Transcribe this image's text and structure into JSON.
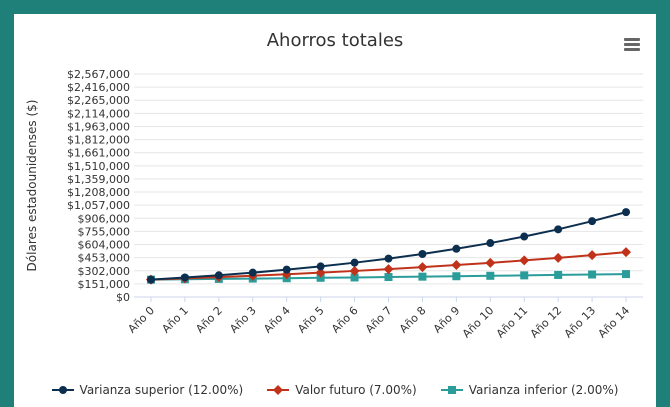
{
  "chart_data": {
    "type": "line",
    "title": "Ahorros totales",
    "ylabel": "Dólares estadounidenses ($)",
    "xlabel": "",
    "categories": [
      "Año 0",
      "Año 1",
      "Año 2",
      "Año 3",
      "Año 4",
      "Año 5",
      "Año 6",
      "Año 7",
      "Año 8",
      "Año 9",
      "Año 10",
      "Año 11",
      "Año 12",
      "Año 13",
      "Año 14"
    ],
    "yticks": [
      0,
      151000,
      302000,
      453000,
      604000,
      755000,
      906000,
      1057000,
      1208000,
      1359000,
      1510000,
      1661000,
      1812000,
      1963000,
      2114000,
      2265000,
      2416000,
      2567000
    ],
    "ytick_labels": [
      "$0",
      "$151,000",
      "$302,000",
      "$453,000",
      "$604,000",
      "$755,000",
      "$906,000",
      "$1,057,000",
      "$1,208,000",
      "$1,359,000",
      "$1,510,000",
      "$1,661,000",
      "$1,812,000",
      "$1,963,000",
      "$2,114,000",
      "$2,265,000",
      "$2,416,000",
      "$2,567,000"
    ],
    "ylim": [
      0,
      2567000
    ],
    "grid": true,
    "legend_position": "bottom",
    "series": [
      {
        "name": "Varianza superior (12.00%)",
        "color": "#0d2f4f",
        "marker": "circle",
        "values": [
          200000,
          225000,
          250000,
          280000,
          315000,
          352000,
          395000,
          442000,
          495000,
          555000,
          621000,
          696000,
          779000,
          873000,
          977000
        ]
      },
      {
        "name": "Valor futuro (7.00%)",
        "color": "#c0321a",
        "marker": "diamond",
        "values": [
          200000,
          214000,
          229000,
          245000,
          262000,
          281000,
          300000,
          321000,
          344000,
          368000,
          393000,
          421000,
          450000,
          482000,
          516000
        ]
      },
      {
        "name": "Varianza inferior (2.00%)",
        "color": "#2a9c9a",
        "marker": "square",
        "values": [
          200000,
          204000,
          208000,
          212000,
          216000,
          221000,
          225000,
          230000,
          234000,
          239000,
          244000,
          249000,
          254000,
          259000,
          264000
        ]
      }
    ]
  },
  "toolbar": {
    "menu_icon": "hamburger-menu-icon"
  }
}
